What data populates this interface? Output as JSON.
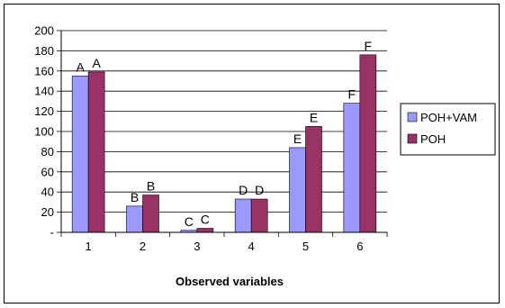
{
  "chart_data": {
    "type": "bar",
    "title": "",
    "xlabel": "Observed variables",
    "ylabel": "",
    "categories": [
      "1",
      "2",
      "3",
      "4",
      "5",
      "6"
    ],
    "ylim": [
      0,
      200
    ],
    "yticks": [
      0,
      20,
      40,
      60,
      80,
      100,
      120,
      140,
      160,
      180,
      200
    ],
    "ytick_labels": [
      "-",
      "20",
      "40",
      "60",
      "80",
      "100",
      "120",
      "140",
      "160",
      "180",
      "200"
    ],
    "grid": "horizontal",
    "legend_position": "right",
    "series": [
      {
        "name": "POH+VAM",
        "color": "#9999ff",
        "values": [
          155,
          26,
          2,
          33,
          84,
          128
        ],
        "labels": [
          "A",
          "B",
          "C",
          "D",
          "E",
          "F"
        ]
      },
      {
        "name": "POH",
        "color": "#993366",
        "values": [
          159,
          37,
          4,
          33,
          105,
          176
        ],
        "labels": [
          "A",
          "B",
          "C",
          "D",
          "E",
          "F"
        ]
      }
    ]
  }
}
